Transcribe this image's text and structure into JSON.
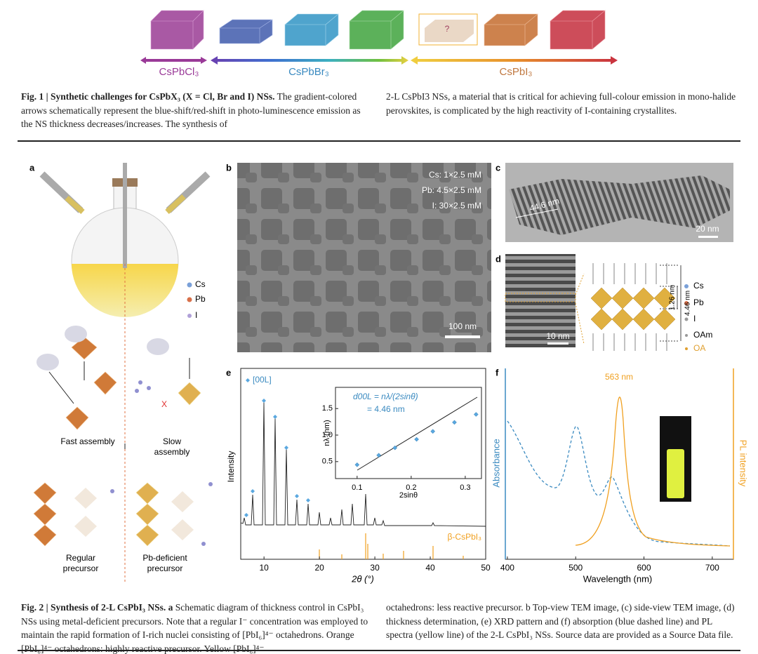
{
  "fig1": {
    "labels": [
      "CsPbCl₃",
      "CsPbBr₃",
      "CsPbI₃"
    ],
    "unknown": "?",
    "caption": {
      "head": "Fig. 1 |",
      "title": "Synthetic challenges for CsPbX₃ (X = Cl, Br and I) NSs.",
      "col1": "The gradient-colored arrows schematically represent the blue-shift/red-shift in photo-luminescence emission as the NS thickness decreases/increases. The synthesis of",
      "col2": "2-L CsPbI3 NSs, a material that is critical for achieving full-colour emission in mono-halide perovskites, is complicated by the high reactivity of I-containing crystallites."
    }
  },
  "fig2": {
    "panel_a": {
      "label": "a",
      "legend": [
        "Cs",
        "Pb",
        "I"
      ],
      "cross": "X",
      "fast": "Fast assembly",
      "slow": "Slow assembly",
      "regular": "Regular precursor",
      "deficient": "Pb-deficient precursor"
    },
    "panel_b": {
      "label": "b",
      "conc": [
        "Cs: 1×2.5 mM",
        "Pb: 4.5×2.5 mM",
        "I: 30×2.5 mM"
      ],
      "scale": "100 nm"
    },
    "panel_c": {
      "label": "c",
      "width": "44.6 nm",
      "scale": "20 nm"
    },
    "panel_d": {
      "label": "d",
      "scale": "10 nm",
      "layer": "1.26 nm",
      "thickness": "4.46 nm",
      "legend": [
        "Cs",
        "Pb",
        "I",
        "OAm",
        "OA"
      ]
    },
    "panel_e": {
      "label": "e",
      "legend": "[00L]",
      "ylabel": "Intensity",
      "xlabel": "2θ (°)",
      "xlim": [
        5.8,
        50
      ],
      "xticks": [
        10,
        20,
        30,
        40,
        50
      ],
      "reference": "β-CsPbI₃",
      "inset": {
        "type": "scatter",
        "formula": "d00L = nλ/(2sinθ)",
        "result": "= 4.46 nm",
        "ylabel": "nλ (nm)",
        "xlabel": "2sinθ",
        "xlim": [
          0.06,
          0.33
        ],
        "ylim": [
          0.18,
          1.9
        ],
        "xticks": [
          0.1,
          0.2,
          0.3
        ],
        "yticks": [
          0.5,
          {
            "value": 1,
            "label": "1.0"
          },
          1.5
        ],
        "x": [
          0.1,
          0.14,
          0.17,
          0.21,
          0.24,
          0.28,
          0.32
        ],
        "values": [
          0.44,
          0.62,
          0.76,
          0.92,
          1.07,
          1.24,
          1.39
        ]
      }
    },
    "panel_f": {
      "label": "f",
      "peak": "563 nm",
      "ylabel_left": "Absorbance",
      "ylabel_right": "PL intensity",
      "xlabel": "Wavelength (nm)",
      "xlim": [
        397,
        731
      ],
      "xticks": [
        400,
        500,
        600,
        700
      ]
    },
    "caption": {
      "head": "Fig. 2 |",
      "title": "Synthesis of 2-L CsPbI₃ NSs.",
      "letter": "a",
      "col1": "Schematic diagram of thickness control in CsPbI₃ NSs using metal-deficient precursors. Note that a regular I⁻ concentration was employed to maintain the rapid formation of I-rich nuclei consisting of [PbI₆]⁴⁻ octahedrons. Orange [PbI₆]⁴⁻ octahedrons: highly reactive precursor. Yellow [PbI₆]⁴⁻",
      "col2": "octahedrons: less reactive precursor. b Top-view TEM image, (c) side-view TEM image, (d) thickness determination, (e) XRD pattern and (f) absorption (blue dashed line) and PL spectra (yellow line) of the 2-L CsPbI₃ NSs. Source data are provided as a Source Data file."
    }
  }
}
